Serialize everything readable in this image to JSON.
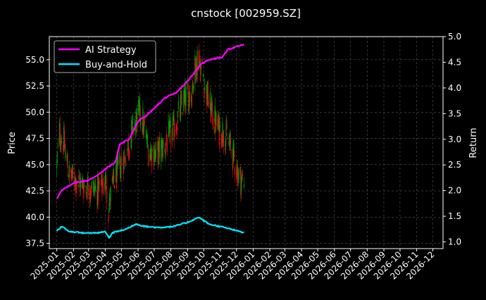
{
  "chart_data": {
    "type": "candlestick+line",
    "title": "cnstock [002959.SZ]",
    "ylabel_left": "Price",
    "ylabel_right": "Return",
    "ylim_left": [
      37.0,
      57.2
    ],
    "ylim_right": [
      0.87,
      5.0
    ],
    "yticks_left": [
      37.5,
      40.0,
      42.5,
      45.0,
      47.5,
      50.0,
      52.5,
      55.0
    ],
    "yticks_right": [
      1.0,
      1.5,
      2.0,
      2.5,
      3.0,
      3.5,
      4.0,
      4.5,
      5.0
    ],
    "xlim": [
      "2024-12-18",
      "2026-12-20"
    ],
    "x_tick_labels": [
      "2025-01",
      "2025-02",
      "2025-03",
      "2025-04",
      "2025-05",
      "2025-06",
      "2025-07",
      "2025-08",
      "2025-09",
      "2025-10",
      "2025-11",
      "2025-12",
      "2026-01",
      "2026-02",
      "2026-03",
      "2026-04",
      "2026-05",
      "2026-06",
      "2026-07",
      "2026-08",
      "2026-09",
      "2026-10",
      "2026-11",
      "2026-12"
    ],
    "grid": true,
    "legend_position": "upper-left",
    "colors": {
      "up": "#00a000",
      "down": "#e01010",
      "ai_strategy": "#ff00ff",
      "buy_and_hold": "#00e5ff",
      "grid": "#555555",
      "background": "#000000"
    },
    "price_path": [
      {
        "date": "2025-01-01",
        "price": 45.0
      },
      {
        "date": "2025-01-06",
        "price": 48.0
      },
      {
        "date": "2025-01-14",
        "price": 47.0
      },
      {
        "date": "2025-01-24",
        "price": 44.0
      },
      {
        "date": "2025-02-06",
        "price": 43.5
      },
      {
        "date": "2025-02-20",
        "price": 43.0
      },
      {
        "date": "2025-03-06",
        "price": 42.8
      },
      {
        "date": "2025-03-20",
        "price": 42.5
      },
      {
        "date": "2025-04-03",
        "price": 43.5
      },
      {
        "date": "2025-04-07",
        "price": 40.5
      },
      {
        "date": "2025-04-12",
        "price": 42.5
      },
      {
        "date": "2025-04-25",
        "price": 44.5
      },
      {
        "date": "2025-05-12",
        "price": 46.5
      },
      {
        "date": "2025-05-26",
        "price": 49.0
      },
      {
        "date": "2025-06-06",
        "price": 50.0
      },
      {
        "date": "2025-06-20",
        "price": 46.5
      },
      {
        "date": "2025-07-05",
        "price": 46.0
      },
      {
        "date": "2025-07-22",
        "price": 47.0
      },
      {
        "date": "2025-08-08",
        "price": 48.5
      },
      {
        "date": "2025-08-24",
        "price": 51.0
      },
      {
        "date": "2025-09-08",
        "price": 52.0
      },
      {
        "date": "2025-09-20",
        "price": 55.5
      },
      {
        "date": "2025-09-28",
        "price": 54.0
      },
      {
        "date": "2025-10-12",
        "price": 50.5
      },
      {
        "date": "2025-10-27",
        "price": 48.5
      },
      {
        "date": "2025-11-10",
        "price": 48.0
      },
      {
        "date": "2025-11-24",
        "price": 46.0
      },
      {
        "date": "2025-12-05",
        "price": 44.0
      },
      {
        "date": "2025-12-15",
        "price": 43.2
      }
    ],
    "series": [
      {
        "name": "AI Strategy",
        "axis": "right",
        "points": [
          {
            "date": "2025-01-01",
            "value": 1.85
          },
          {
            "date": "2025-01-10",
            "value": 2.0
          },
          {
            "date": "2025-02-01",
            "value": 2.15
          },
          {
            "date": "2025-03-01",
            "value": 2.2
          },
          {
            "date": "2025-03-25",
            "value": 2.35
          },
          {
            "date": "2025-04-05",
            "value": 2.45
          },
          {
            "date": "2025-04-20",
            "value": 2.55
          },
          {
            "date": "2025-04-28",
            "value": 2.9
          },
          {
            "date": "2025-05-15",
            "value": 3.0
          },
          {
            "date": "2025-06-01",
            "value": 3.35
          },
          {
            "date": "2025-06-15",
            "value": 3.45
          },
          {
            "date": "2025-07-01",
            "value": 3.6
          },
          {
            "date": "2025-07-20",
            "value": 3.8
          },
          {
            "date": "2025-08-10",
            "value": 3.9
          },
          {
            "date": "2025-08-25",
            "value": 4.05
          },
          {
            "date": "2025-09-10",
            "value": 4.25
          },
          {
            "date": "2025-09-25",
            "value": 4.45
          },
          {
            "date": "2025-10-10",
            "value": 4.55
          },
          {
            "date": "2025-11-05",
            "value": 4.6
          },
          {
            "date": "2025-11-15",
            "value": 4.75
          },
          {
            "date": "2025-11-30",
            "value": 4.8
          },
          {
            "date": "2025-12-15",
            "value": 4.85
          }
        ]
      },
      {
        "name": "Buy-and-Hold",
        "axis": "right",
        "points": [
          {
            "date": "2025-01-01",
            "value": 1.22
          },
          {
            "date": "2025-01-10",
            "value": 1.3
          },
          {
            "date": "2025-01-25",
            "value": 1.2
          },
          {
            "date": "2025-02-15",
            "value": 1.18
          },
          {
            "date": "2025-03-15",
            "value": 1.17
          },
          {
            "date": "2025-04-01",
            "value": 1.2
          },
          {
            "date": "2025-04-08",
            "value": 1.08
          },
          {
            "date": "2025-04-15",
            "value": 1.18
          },
          {
            "date": "2025-05-10",
            "value": 1.25
          },
          {
            "date": "2025-05-28",
            "value": 1.35
          },
          {
            "date": "2025-06-15",
            "value": 1.3
          },
          {
            "date": "2025-07-10",
            "value": 1.28
          },
          {
            "date": "2025-08-05",
            "value": 1.3
          },
          {
            "date": "2025-09-01",
            "value": 1.38
          },
          {
            "date": "2025-09-22",
            "value": 1.48
          },
          {
            "date": "2025-10-10",
            "value": 1.35
          },
          {
            "date": "2025-11-01",
            "value": 1.3
          },
          {
            "date": "2025-11-20",
            "value": 1.25
          },
          {
            "date": "2025-12-15",
            "value": 1.18
          }
        ]
      }
    ]
  }
}
